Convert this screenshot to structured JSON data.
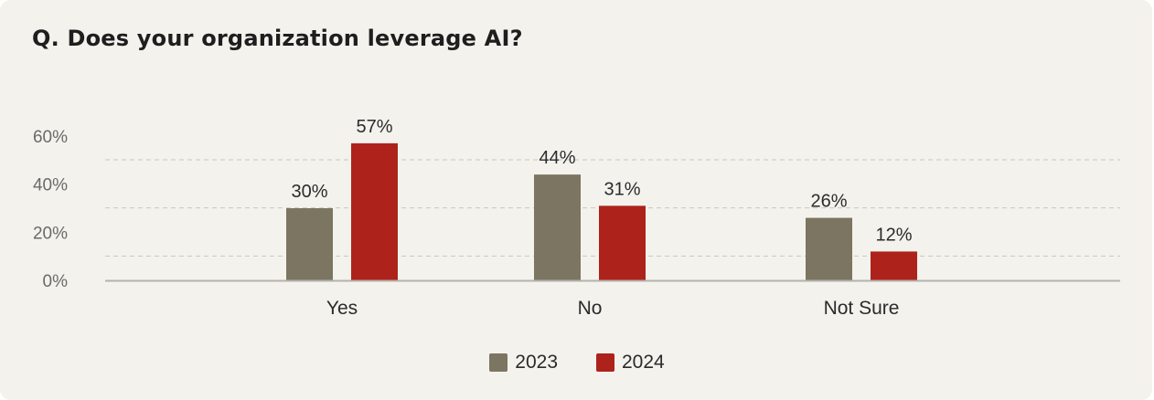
{
  "chart_data": {
    "type": "bar",
    "title": "Q. Does your organization leverage AI?",
    "categories": [
      "Yes",
      "No",
      "Not Sure"
    ],
    "series": [
      {
        "name": "2023",
        "color": "#7b7561",
        "values": [
          30,
          44,
          26
        ]
      },
      {
        "name": "2024",
        "color": "#ad231b",
        "values": [
          57,
          31,
          12
        ]
      }
    ],
    "yticks": [
      "0%",
      "20%",
      "40%",
      "60%"
    ],
    "ytick_values": [
      0,
      20,
      40,
      60
    ],
    "ylim": [
      0,
      60
    ],
    "value_suffix": "%",
    "grid": true,
    "grid_style": "dashed",
    "legend_position": "bottom-center",
    "xlabel": "",
    "ylabel": ""
  }
}
